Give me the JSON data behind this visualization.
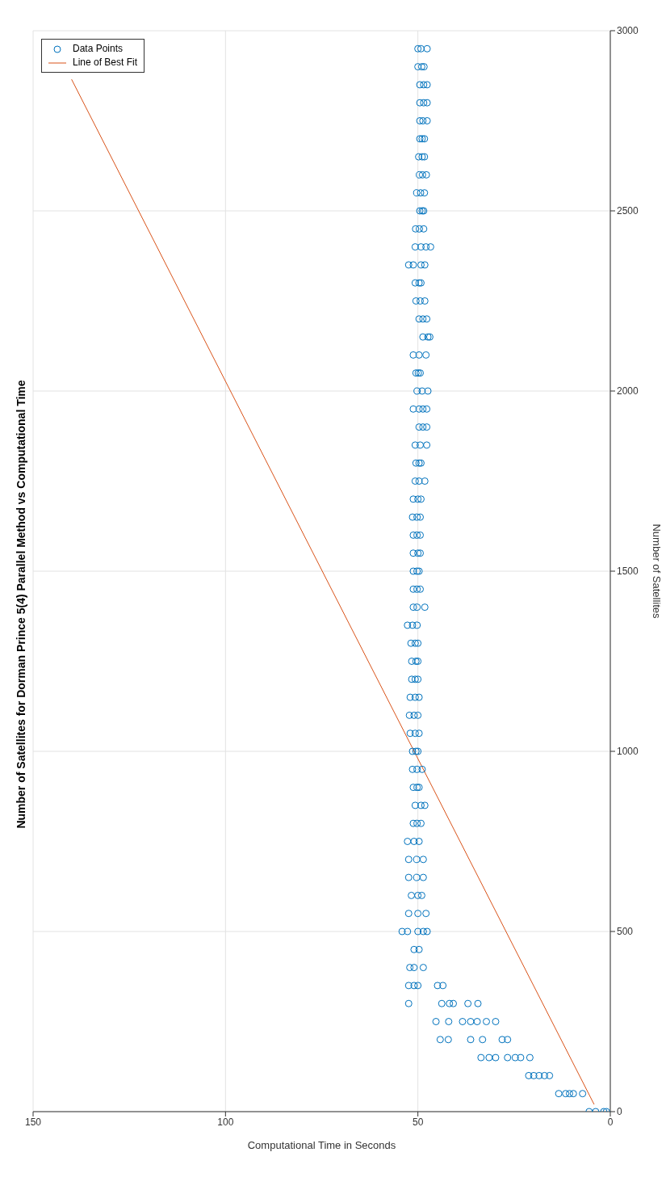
{
  "chart_data": {
    "type": "scatter",
    "title": "Number of Satellites for Dorman Prince 5(4) Parallel Method vs Computational Time",
    "xlabel": "Computational Time in Seconds",
    "ylabel": "Number of Satellites",
    "xlim": [
      150,
      0
    ],
    "xticks": [
      0,
      50,
      100,
      150
    ],
    "ylim": [
      0,
      3000
    ],
    "yticks": [
      0,
      500,
      1000,
      1500,
      2000,
      2500,
      3000
    ],
    "grid": true,
    "legend": "top left",
    "series": [
      {
        "name": "Data Points",
        "color": "#0072bd",
        "marker": "circle",
        "values": [
          0,
          0,
          0,
          0,
          50,
          50,
          50,
          50,
          50,
          100,
          100,
          100,
          100,
          100,
          150,
          150,
          150,
          150,
          150,
          150,
          150,
          200,
          200,
          200,
          200,
          200,
          200,
          250,
          250,
          250,
          250,
          250,
          250,
          250,
          300,
          300,
          300,
          300,
          300,
          300,
          350,
          350,
          350,
          350,
          350,
          400,
          400,
          400,
          450,
          450,
          500,
          500,
          500,
          500,
          500,
          550,
          550,
          550,
          600,
          600,
          600,
          650,
          650,
          650,
          700,
          700,
          700,
          750,
          750,
          750,
          800,
          800,
          800,
          850,
          850,
          850,
          900,
          900,
          900,
          950,
          950,
          950,
          1000,
          1000,
          1000,
          1050,
          1050,
          1050,
          1100,
          1100,
          1100,
          1150,
          1150,
          1150,
          1200,
          1200,
          1200,
          1250,
          1250,
          1250,
          1300,
          1300,
          1300,
          1350,
          1350,
          1350,
          1400,
          1400,
          1400,
          1450,
          1450,
          1450,
          1500,
          1500,
          1500,
          1550,
          1550,
          1550,
          1600,
          1600,
          1600,
          1650,
          1650,
          1650,
          1700,
          1700,
          1700,
          1750,
          1750,
          1750,
          1800,
          1800,
          1800,
          1850,
          1850,
          1850,
          1900,
          1900,
          1900,
          1950,
          1950,
          1950,
          1950,
          2000,
          2000,
          2000,
          2050,
          2050,
          2050,
          2100,
          2100,
          2100,
          2150,
          2150,
          2150,
          2200,
          2200,
          2200,
          2250,
          2250,
          2250,
          2300,
          2300,
          2300,
          2350,
          2350,
          2350,
          2350,
          2400,
          2400,
          2400,
          2400,
          2450,
          2450,
          2450,
          2500,
          2500,
          2500,
          2550,
          2550,
          2550,
          2600,
          2600,
          2600,
          2650,
          2650,
          2650,
          2700,
          2700,
          2700,
          2750,
          2750,
          2750,
          2800,
          2800,
          2800,
          2850,
          2850,
          2850,
          2900,
          2900,
          2900,
          2950,
          2950,
          2950
        ],
        "x": [
          5.5,
          3.8,
          1.7,
          1.0,
          13.4,
          11.6,
          10.6,
          9.6,
          7.2,
          21.2,
          19.9,
          18.5,
          17.1,
          15.8,
          33.6,
          31.5,
          29.8,
          26.7,
          24.7,
          23.3,
          20.9,
          44.2,
          42.1,
          36.3,
          33.2,
          28.1,
          26.7,
          45.3,
          42.0,
          38.4,
          36.3,
          34.6,
          32.2,
          29.8,
          52.4,
          43.8,
          41.8,
          40.8,
          37.0,
          34.4,
          52.4,
          51.0,
          50.0,
          44.9,
          43.5,
          52.1,
          51.0,
          48.6,
          51.0,
          49.7,
          54.1,
          52.7,
          50.0,
          48.6,
          47.6,
          52.4,
          50.0,
          47.9,
          51.7,
          50.0,
          49.0,
          52.4,
          50.3,
          48.6,
          52.4,
          50.3,
          48.6,
          52.7,
          51.0,
          49.7,
          51.2,
          50.2,
          49.2,
          50.7,
          49.2,
          48.2,
          51.2,
          50.2,
          49.7,
          51.4,
          50.2,
          48.9,
          51.4,
          50.5,
          50.0,
          52.0,
          50.7,
          49.7,
          52.2,
          51.0,
          50.0,
          52.0,
          50.7,
          49.7,
          51.6,
          50.7,
          50.0,
          51.6,
          50.5,
          50.0,
          51.8,
          50.7,
          50.0,
          52.7,
          51.4,
          50.2,
          51.2,
          50.2,
          48.2,
          51.2,
          50.2,
          49.4,
          51.2,
          50.2,
          49.7,
          51.2,
          50.0,
          49.4,
          51.2,
          50.2,
          49.4,
          51.4,
          50.2,
          49.4,
          51.2,
          50.0,
          49.2,
          50.7,
          49.7,
          48.2,
          50.5,
          49.7,
          49.2,
          50.7,
          49.4,
          47.7,
          49.7,
          48.7,
          47.7,
          51.2,
          49.7,
          48.7,
          47.7,
          50.2,
          48.9,
          47.4,
          50.5,
          49.9,
          49.4,
          51.2,
          49.7,
          47.9,
          48.7,
          47.4,
          46.9,
          49.7,
          48.7,
          47.7,
          50.5,
          49.4,
          48.2,
          50.7,
          49.7,
          49.2,
          52.4,
          51.2,
          49.2,
          48.2,
          50.7,
          49.2,
          47.9,
          46.7,
          50.6,
          49.6,
          48.5,
          49.5,
          48.9,
          48.5,
          50.3,
          49.3,
          48.3,
          49.6,
          48.8,
          47.8,
          49.8,
          48.9,
          48.3,
          49.5,
          48.9,
          48.3,
          49.5,
          48.7,
          47.6,
          49.5,
          48.5,
          47.6,
          49.5,
          48.5,
          47.6,
          50.0,
          49.0,
          48.4,
          50.0,
          49.2,
          47.6
        ]
      },
      {
        "type": "line",
        "name": "Line of Best Fit",
        "color": "#d95319",
        "x": [
          4.2,
          140
        ],
        "values": [
          20,
          2865
        ]
      }
    ]
  }
}
